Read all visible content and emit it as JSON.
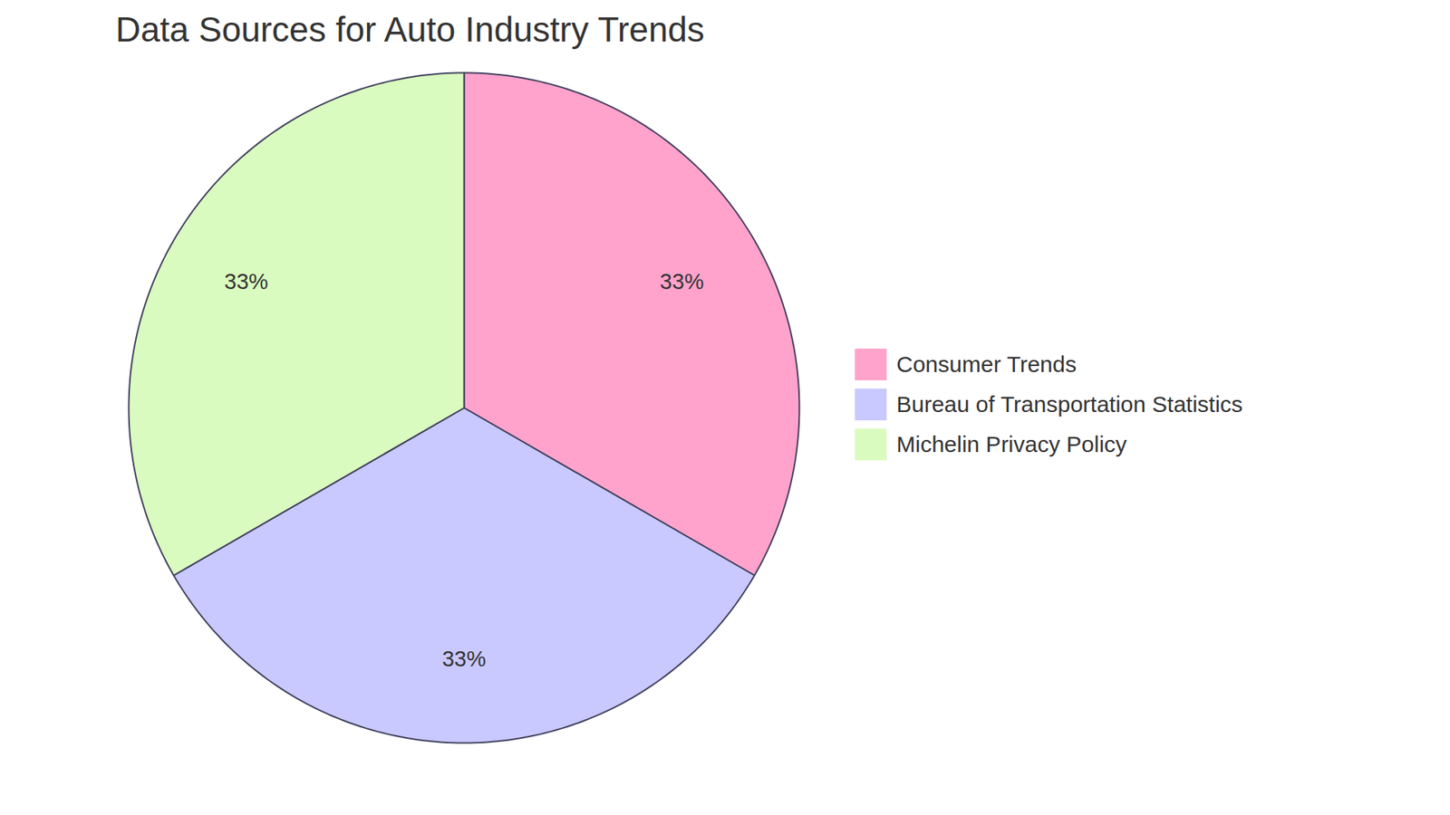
{
  "chart_data": {
    "type": "pie",
    "title": "Data Sources for Auto Industry Trends",
    "categories": [
      "Consumer Trends",
      "Bureau of Transportation Statistics",
      "Michelin Privacy Policy"
    ],
    "values": [
      33,
      33,
      33
    ],
    "value_labels": [
      "33%",
      "33%",
      "33%"
    ],
    "colors": [
      "#ffa3cd",
      "#c9c9ff",
      "#dafbbf"
    ],
    "data_labels": true,
    "legend": "right"
  }
}
